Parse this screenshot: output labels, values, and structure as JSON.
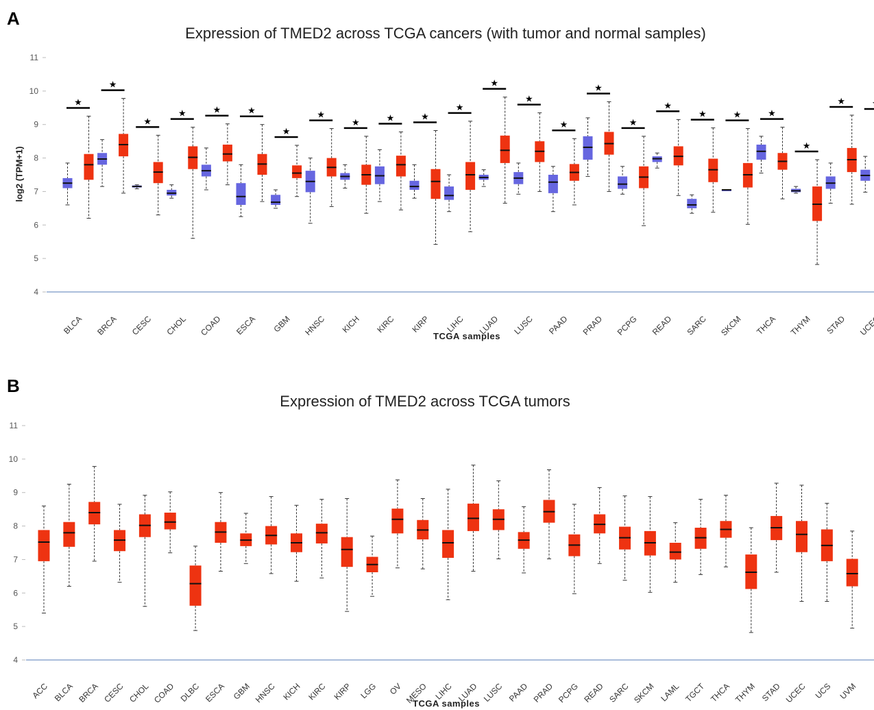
{
  "panels": {
    "a_letter": "A",
    "b_letter": "B"
  },
  "colors": {
    "normal": "#6666e0",
    "tumor": "#ee3311",
    "median": "#111111",
    "axis": "#8ea7cf"
  },
  "chart_data": [
    {
      "type": "boxplot",
      "title": "Expression of TMED2 across TCGA cancers (with tumor and normal samples)",
      "xlabel": "TCGA samples",
      "ylabel": "log2 (TPM+1)",
      "ylim": [
        4,
        11
      ],
      "yticks": [
        4,
        5,
        6,
        7,
        8,
        9,
        10,
        11
      ],
      "significance_marker": "★",
      "categories": [
        "BLCA",
        "BRCA",
        "CESC",
        "CHOL",
        "COAD",
        "ESCA",
        "GBM",
        "HNSC",
        "KICH",
        "KIRC",
        "KIRP",
        "LIHC",
        "LUAD",
        "LUSC",
        "PAAD",
        "PRAD",
        "PCPG",
        "READ",
        "SARC",
        "SKCM",
        "THCA",
        "THYM",
        "STAD",
        "UCEC"
      ],
      "significant": [
        true,
        true,
        true,
        true,
        true,
        true,
        true,
        true,
        true,
        true,
        true,
        true,
        true,
        true,
        true,
        true,
        true,
        true,
        true,
        true,
        true,
        true,
        true,
        true
      ],
      "series": [
        {
          "group": "normal",
          "boxes": [
            [
              6.6,
              7.1,
              7.25,
              7.4,
              7.85
            ],
            [
              7.15,
              7.8,
              7.97,
              8.15,
              8.55
            ],
            [
              7.08,
              7.12,
              7.15,
              7.18,
              7.2
            ],
            [
              6.8,
              6.88,
              6.95,
              7.05,
              7.2
            ],
            [
              7.05,
              7.45,
              7.62,
              7.8,
              8.3
            ],
            [
              6.25,
              6.6,
              6.85,
              7.25,
              7.8
            ],
            [
              6.5,
              6.6,
              6.68,
              6.9,
              7.05
            ],
            [
              6.05,
              6.98,
              7.3,
              7.62,
              8.0
            ],
            [
              7.1,
              7.35,
              7.45,
              7.55,
              7.8
            ],
            [
              6.7,
              7.22,
              7.47,
              7.75,
              8.25
            ],
            [
              6.8,
              7.05,
              7.15,
              7.32,
              7.8
            ],
            [
              6.4,
              6.75,
              6.88,
              7.15,
              7.5
            ],
            [
              7.15,
              7.35,
              7.42,
              7.5,
              7.65
            ],
            [
              6.92,
              7.22,
              7.4,
              7.58,
              7.85
            ],
            [
              6.4,
              6.95,
              7.28,
              7.5,
              7.75
            ],
            [
              7.45,
              7.95,
              8.32,
              8.65,
              9.2
            ],
            [
              6.92,
              7.08,
              7.22,
              7.45,
              7.75
            ],
            [
              7.7,
              7.88,
              7.98,
              8.05,
              8.15
            ],
            [
              6.35,
              6.5,
              6.6,
              6.78,
              6.9
            ],
            [
              7.05,
              7.05,
              7.05,
              7.05,
              7.05
            ],
            [
              7.55,
              7.95,
              8.2,
              8.4,
              8.65
            ],
            [
              6.95,
              6.98,
              7.02,
              7.08,
              7.15
            ],
            [
              6.65,
              7.08,
              7.25,
              7.45,
              7.85
            ],
            [
              6.98,
              7.32,
              7.48,
              7.65,
              8.05
            ]
          ]
        },
        {
          "group": "tumor",
          "boxes": [
            [
              6.2,
              7.35,
              7.8,
              8.12,
              9.25
            ],
            [
              6.95,
              8.05,
              8.4,
              8.72,
              9.78
            ],
            [
              6.3,
              7.25,
              7.58,
              7.88,
              8.68
            ],
            [
              5.6,
              7.67,
              8.02,
              8.35,
              8.92
            ],
            [
              7.2,
              7.9,
              8.12,
              8.4,
              9.02
            ],
            [
              6.7,
              7.5,
              7.82,
              8.12,
              9.0
            ],
            [
              6.85,
              7.4,
              7.55,
              7.78,
              8.38
            ],
            [
              6.55,
              7.45,
              7.72,
              8.0,
              8.88
            ],
            [
              6.35,
              7.2,
              7.5,
              7.8,
              8.65
            ],
            [
              6.45,
              7.45,
              7.8,
              8.07,
              8.78
            ],
            [
              5.42,
              6.78,
              7.3,
              7.67,
              8.82
            ],
            [
              5.8,
              7.05,
              7.5,
              7.88,
              9.1
            ],
            [
              6.65,
              7.85,
              8.23,
              8.67,
              9.82
            ],
            [
              7.0,
              7.88,
              8.2,
              8.5,
              9.35
            ],
            [
              6.6,
              7.32,
              7.57,
              7.82,
              8.58
            ],
            [
              7.0,
              8.1,
              8.43,
              8.78,
              9.68
            ],
            [
              5.98,
              7.1,
              7.43,
              7.75,
              8.65
            ],
            [
              6.88,
              7.78,
              8.05,
              8.35,
              9.15
            ],
            [
              6.38,
              7.28,
              7.65,
              7.98,
              8.9
            ],
            [
              6.02,
              7.12,
              7.5,
              7.85,
              8.88
            ],
            [
              6.78,
              7.65,
              7.9,
              8.15,
              8.92
            ],
            [
              4.82,
              6.12,
              6.62,
              7.15,
              7.95
            ],
            [
              6.62,
              7.58,
              7.95,
              8.3,
              9.28
            ],
            [
              5.75,
              7.22,
              7.75,
              8.15,
              9.22
            ]
          ]
        }
      ]
    },
    {
      "type": "boxplot",
      "title": "Expression of TMED2 across TCGA tumors",
      "xlabel": "TCGA samples",
      "ylim": [
        4,
        11
      ],
      "yticks": [
        4,
        5,
        6,
        7,
        8,
        9,
        10,
        11
      ],
      "categories": [
        "ACC",
        "BLCA",
        "BRCA",
        "CESC",
        "CHOL",
        "COAD",
        "DLBC",
        "ESCA",
        "GBM",
        "HNSC",
        "KICH",
        "KIRC",
        "KIRP",
        "LGG",
        "OV",
        "MESO",
        "LIHC",
        "LUAD",
        "LUSC",
        "PAAD",
        "PRAD",
        "PCPG",
        "READ",
        "SARC",
        "SKCM",
        "LAML",
        "TGCT",
        "THCA",
        "THYM",
        "STAD",
        "UCEC",
        "UCS",
        "UVM"
      ],
      "series": [
        {
          "group": "tumor",
          "boxes": [
            [
              5.4,
              6.95,
              7.52,
              7.88,
              8.6
            ],
            [
              6.2,
              7.38,
              7.8,
              8.12,
              9.25
            ],
            [
              6.95,
              8.05,
              8.4,
              8.72,
              9.78
            ],
            [
              6.32,
              7.25,
              7.58,
              7.88,
              8.65
            ],
            [
              5.6,
              7.67,
              8.02,
              8.35,
              8.92
            ],
            [
              7.2,
              7.9,
              8.12,
              8.4,
              9.02
            ],
            [
              4.88,
              5.62,
              6.28,
              6.82,
              7.4
            ],
            [
              6.65,
              7.5,
              7.82,
              8.12,
              9.0
            ],
            [
              6.88,
              7.4,
              7.58,
              7.78,
              8.38
            ],
            [
              6.58,
              7.45,
              7.72,
              8.0,
              8.88
            ],
            [
              6.35,
              7.22,
              7.5,
              7.78,
              8.62
            ],
            [
              6.45,
              7.48,
              7.8,
              8.07,
              8.8
            ],
            [
              5.45,
              6.78,
              7.3,
              7.67,
              8.82
            ],
            [
              5.9,
              6.62,
              6.85,
              7.08,
              7.7
            ],
            [
              6.75,
              7.78,
              8.2,
              8.52,
              9.38
            ],
            [
              6.72,
              7.6,
              7.88,
              8.18,
              8.82
            ],
            [
              5.8,
              7.05,
              7.5,
              7.88,
              9.1
            ],
            [
              6.65,
              7.85,
              8.23,
              8.67,
              9.82
            ],
            [
              7.02,
              7.88,
              8.2,
              8.5,
              9.35
            ],
            [
              6.6,
              7.32,
              7.58,
              7.82,
              8.58
            ],
            [
              7.02,
              8.1,
              8.43,
              8.78,
              9.68
            ],
            [
              5.98,
              7.1,
              7.43,
              7.75,
              8.65
            ],
            [
              6.88,
              7.78,
              8.05,
              8.35,
              9.15
            ],
            [
              6.38,
              7.3,
              7.65,
              7.98,
              8.9
            ],
            [
              6.02,
              7.12,
              7.5,
              7.85,
              8.88
            ],
            [
              6.32,
              7.0,
              7.22,
              7.5,
              8.1
            ],
            [
              6.55,
              7.32,
              7.65,
              7.95,
              8.8
            ],
            [
              6.78,
              7.65,
              7.9,
              8.15,
              8.92
            ],
            [
              4.82,
              6.12,
              6.62,
              7.15,
              7.95
            ],
            [
              6.62,
              7.58,
              7.95,
              8.3,
              9.28
            ],
            [
              5.75,
              7.22,
              7.75,
              8.15,
              9.22
            ],
            [
              5.75,
              6.95,
              7.42,
              7.9,
              8.68
            ],
            [
              4.95,
              6.2,
              6.58,
              7.02,
              7.85
            ]
          ]
        }
      ]
    }
  ]
}
